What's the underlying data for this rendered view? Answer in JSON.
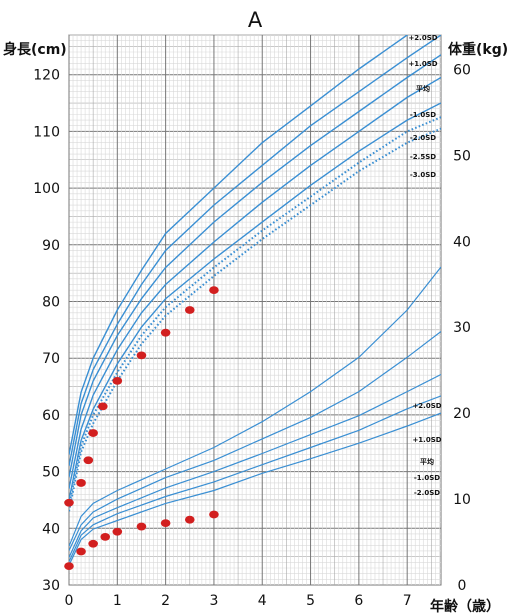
{
  "chart_data": {
    "type": "line",
    "panel_label": "A",
    "xlabel": "年齢（歳）",
    "ylabel_left": "身長(cm)",
    "ylabel_right": "体重(kg)",
    "xlim": [
      0,
      7.7
    ],
    "height_ylim": [
      30,
      127
    ],
    "weight_ylim": [
      0,
      64
    ],
    "x_ticks": [
      0,
      1,
      2,
      3,
      4,
      5,
      6,
      7
    ],
    "height_ticks": [
      30,
      40,
      50,
      60,
      70,
      80,
      90,
      100,
      110,
      120
    ],
    "weight_ticks": [
      0,
      10,
      20,
      30,
      40,
      50,
      60
    ],
    "section_labels": {
      "height": "身長",
      "weight": "体重"
    },
    "grid": true,
    "height_curves": [
      {
        "name": "+2.0SD",
        "style": "solid",
        "x": [
          0,
          0.25,
          0.5,
          1,
          1.5,
          2,
          3,
          4,
          5,
          6,
          7,
          7.7
        ],
        "y": [
          53,
          64,
          70,
          78.5,
          85.5,
          92,
          100,
          108,
          114.5,
          121,
          127,
          131
        ]
      },
      {
        "name": "+1.0SD",
        "style": "solid",
        "x": [
          0,
          0.25,
          0.5,
          1,
          1.5,
          2,
          3,
          4,
          5,
          6,
          7,
          7.7
        ],
        "y": [
          51,
          62,
          68,
          76,
          83,
          89,
          97,
          104,
          111,
          117,
          123,
          127
        ]
      },
      {
        "name": "平均",
        "style": "solid",
        "x": [
          0,
          0.25,
          0.5,
          1,
          1.5,
          2,
          3,
          4,
          5,
          6,
          7,
          7.7
        ],
        "y": [
          49,
          60,
          66,
          74,
          80.5,
          86,
          94,
          101,
          107.5,
          113.5,
          119.5,
          123.5
        ]
      },
      {
        "name": "-1.0SD",
        "style": "solid",
        "x": [
          0,
          0.25,
          0.5,
          1,
          1.5,
          2,
          3,
          4,
          5,
          6,
          7,
          7.7
        ],
        "y": [
          47,
          57.5,
          63.5,
          71.5,
          78,
          83,
          90.5,
          97.5,
          104,
          110,
          116,
          119.5
        ]
      },
      {
        "name": "-2.0SD",
        "style": "solid",
        "x": [
          0,
          0.25,
          0.5,
          1,
          1.5,
          2,
          3,
          4,
          5,
          6,
          7,
          7.7
        ],
        "y": [
          45,
          55.5,
          61,
          69,
          75.5,
          80.5,
          87.5,
          94,
          100.5,
          106.5,
          112,
          115
        ]
      },
      {
        "name": "-2.5SD",
        "style": "dotted",
        "x": [
          0,
          0.25,
          0.5,
          1,
          1.5,
          2,
          3,
          4,
          5,
          6,
          7,
          7.7
        ],
        "y": [
          44,
          54.5,
          60,
          67.5,
          74,
          79,
          86,
          92.5,
          98.5,
          104.5,
          110,
          112.5
        ]
      },
      {
        "name": "-3.0SD",
        "style": "dotted",
        "x": [
          0,
          0.25,
          0.5,
          1,
          1.5,
          2,
          3,
          4,
          5,
          6,
          7,
          7.7
        ],
        "y": [
          43,
          53.5,
          58.5,
          66,
          72.5,
          77.5,
          84.5,
          91,
          97,
          103,
          108,
          110.5
        ]
      }
    ],
    "weight_curves": [
      {
        "name": "+2.0SD",
        "x": [
          0,
          0.25,
          0.5,
          1,
          2,
          3,
          4,
          5,
          6,
          7,
          7.7
        ],
        "y": [
          4.5,
          8,
          9.5,
          11,
          13.5,
          16,
          19,
          22.5,
          26.5,
          32,
          37
        ]
      },
      {
        "name": "+1.0SD",
        "x": [
          0,
          0.25,
          0.5,
          1,
          2,
          3,
          4,
          5,
          6,
          7,
          7.7
        ],
        "y": [
          4,
          7,
          8.5,
          10,
          12.5,
          14.5,
          17,
          19.5,
          22.5,
          26.5,
          29.5
        ]
      },
      {
        "name": "平均",
        "x": [
          0,
          0.25,
          0.5,
          1,
          2,
          3,
          4,
          5,
          6,
          7,
          7.7
        ],
        "y": [
          3.2,
          6.3,
          7.8,
          9,
          11.3,
          13.2,
          15.3,
          17.5,
          19.7,
          22.5,
          24.5
        ]
      },
      {
        "name": "-1.0SD",
        "x": [
          0,
          0.25,
          0.5,
          1,
          2,
          3,
          4,
          5,
          6,
          7,
          7.7
        ],
        "y": [
          2.7,
          5.8,
          7,
          8.3,
          10.3,
          12,
          14,
          16,
          18,
          20.5,
          22
        ]
      },
      {
        "name": "-2.0SD",
        "x": [
          0,
          0.25,
          0.5,
          1,
          2,
          3,
          4,
          5,
          6,
          7,
          7.7
        ],
        "y": [
          2.3,
          5.3,
          6.5,
          7.5,
          9.5,
          11,
          13,
          14.7,
          16.5,
          18.5,
          20
        ]
      }
    ],
    "height_points": {
      "x": [
        0,
        0.25,
        0.4,
        0.5,
        0.7,
        1,
        1.5,
        2,
        2.5,
        3
      ],
      "y": [
        44.5,
        48,
        52,
        56.8,
        61.5,
        66,
        70.5,
        74.5,
        78.5,
        82
      ]
    },
    "weight_points": {
      "x": [
        0,
        0.25,
        0.5,
        0.75,
        1,
        1.5,
        2,
        2.5,
        3
      ],
      "y": [
        2.2,
        3.9,
        4.8,
        5.6,
        6.2,
        6.8,
        7.2,
        7.6,
        8.2
      ]
    }
  }
}
